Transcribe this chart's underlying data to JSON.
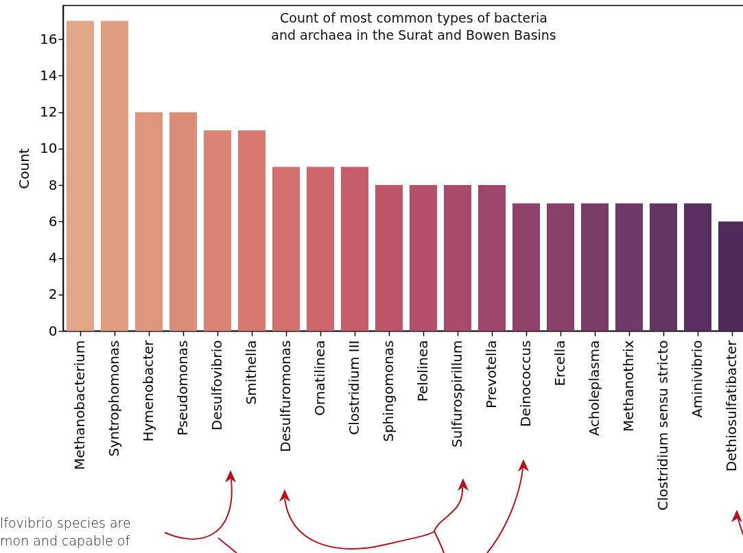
{
  "chart_data": {
    "type": "bar",
    "title": "Count of most common types of bacteria\nand archaea in the Surat and Bowen Basins",
    "ylabel": "Count",
    "categories": [
      "Methanobacterium",
      "Syntrophomonas",
      "Hymenobacter",
      "Pseudomonas",
      "Desulfovibrio",
      "Smithella",
      "Desulfuromonas",
      "Ornatilinea",
      "Clostridium III",
      "Sphingomonas",
      "Pelolinea",
      "Sulfurospirillum",
      "Prevotella",
      "Deinococcus",
      "Ercella",
      "Acholeplasma",
      "Methanothrix",
      "Clostridium sensu stricto",
      "Aminivibrio",
      "Dethiosulfatibacter"
    ],
    "values": [
      17,
      17,
      12,
      12,
      11,
      11,
      9,
      9,
      9,
      8,
      8,
      8,
      8,
      7,
      7,
      7,
      7,
      7,
      7,
      6
    ],
    "colors": [
      "#e0a686",
      "#df9e81",
      "#dd957c",
      "#dc8d78",
      "#d98474",
      "#d67a71",
      "#d2706e",
      "#cd676c",
      "#c65d6b",
      "#bd566b",
      "#b3506c",
      "#a84b6c",
      "#9d466c",
      "#91426b",
      "#86406a",
      "#7a3d68",
      "#6e3966",
      "#633562",
      "#582f5e",
      "#4f2a5a"
    ],
    "ylim": [
      0,
      17.85
    ],
    "yticks": [
      0,
      2,
      4,
      6,
      8,
      10,
      12,
      14,
      16
    ],
    "grid": false,
    "annotations": [
      "lfovibrio species are",
      "mon and capable of"
    ]
  }
}
